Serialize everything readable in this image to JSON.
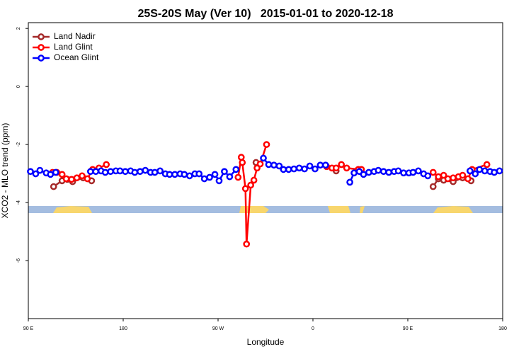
{
  "chart_data": {
    "type": "line",
    "title": "25S-20S May (Ver 10)   2015-01-01 to 2020-12-18",
    "xlabel": "Longitude",
    "ylabel": "XCO2 - MLO trend (ppm)",
    "xlim": [
      90,
      540
    ],
    "ylim": [
      -8,
      2.2
    ],
    "xticks": [
      {
        "value": 90,
        "label": "90 E"
      },
      180,
      {
        "value": 270,
        "label": "90 W"
      },
      {
        "value": 360,
        "label": "0"
      },
      {
        "value": 450,
        "label": "90 E"
      },
      {
        "value": 540,
        "label": "180"
      }
    ],
    "yticks": [
      2,
      0,
      -2,
      -4,
      -6
    ],
    "legend": "top-left",
    "series": [
      {
        "name": "Land Nadir",
        "color": "#a52a2a",
        "x": [
          114,
          122,
          127,
          132,
          142,
          150,
          null,
          306,
          null,
          382,
          null,
          474,
          479,
          484,
          493,
          502,
          510
        ],
        "values": [
          -3.45,
          -3.25,
          -3.2,
          -3.28,
          -3.15,
          -3.25,
          null,
          -2.62,
          null,
          -2.91,
          null,
          -3.45,
          -3.18,
          -3.23,
          -3.28,
          -3.15,
          -3.25
        ]
      },
      {
        "name": "Land Glint",
        "color": "#ff0000",
        "x": [
          113,
          117,
          122,
          126,
          131,
          136,
          141,
          146,
          151,
          157,
          164,
          null,
          289,
          292,
          293,
          296,
          297,
          301,
          304,
          307,
          310,
          316,
          null,
          373,
          378,
          382,
          387,
          392,
          403,
          406,
          null,
          474,
          479,
          484,
          488,
          493,
          498,
          502,
          507,
          511,
          525
        ],
        "values": [
          -2.96,
          -2.96,
          -3.03,
          -3.18,
          -3.2,
          -3.15,
          -3.08,
          -3.18,
          -2.86,
          -2.81,
          -2.69,
          null,
          -3.13,
          -2.44,
          -2.62,
          -3.52,
          -5.43,
          -3.4,
          -3.23,
          -2.81,
          -2.67,
          -2.0,
          null,
          -2.76,
          -2.81,
          -2.81,
          -2.69,
          -2.81,
          -2.86,
          -2.86,
          null,
          -2.96,
          -3.11,
          -3.06,
          -3.18,
          -3.15,
          -3.11,
          -3.06,
          -3.18,
          -2.86,
          -2.69
        ]
      },
      {
        "name": "Ocean Glint",
        "color": "#0000ff",
        "x": [
          92,
          97,
          101,
          107,
          111,
          116,
          null,
          149,
          154,
          159,
          163,
          168,
          173,
          177,
          182,
          187,
          191,
          196,
          201,
          206,
          210,
          215,
          220,
          224,
          229,
          234,
          238,
          243,
          248,
          252,
          257,
          262,
          267,
          271,
          276,
          281,
          287,
          null,
          313,
          318,
          323,
          328,
          332,
          337,
          342,
          347,
          352,
          357,
          362,
          367,
          372,
          null,
          395,
          399,
          404,
          408,
          413,
          418,
          422,
          427,
          432,
          437,
          441,
          446,
          451,
          455,
          460,
          465,
          469,
          null,
          509,
          514,
          518,
          523,
          528,
          532,
          537
        ],
        "values": [
          -2.93,
          -3.01,
          -2.89,
          -2.98,
          -3.03,
          -2.96,
          null,
          -2.93,
          -2.93,
          -2.91,
          -2.96,
          -2.93,
          -2.91,
          -2.91,
          -2.93,
          -2.91,
          -2.96,
          -2.93,
          -2.89,
          -2.96,
          -2.96,
          -2.91,
          -3.01,
          -3.03,
          -3.03,
          -3.01,
          -3.03,
          -3.08,
          -3.01,
          -3.01,
          -3.18,
          -3.13,
          -3.03,
          -3.25,
          -2.93,
          -3.11,
          -2.86,
          null,
          -2.47,
          -2.69,
          -2.71,
          -2.74,
          -2.86,
          -2.86,
          -2.84,
          -2.81,
          -2.84,
          -2.74,
          -2.84,
          -2.71,
          -2.71,
          null,
          -3.3,
          -2.98,
          -2.93,
          -3.03,
          -2.96,
          -2.93,
          -2.89,
          -2.93,
          -2.96,
          -2.93,
          -2.91,
          -2.98,
          -2.98,
          -2.96,
          -2.91,
          -3.01,
          -3.08,
          null,
          -2.91,
          -3.01,
          -2.86,
          -2.91,
          -2.93,
          -2.96,
          -2.91
        ]
      }
    ]
  }
}
